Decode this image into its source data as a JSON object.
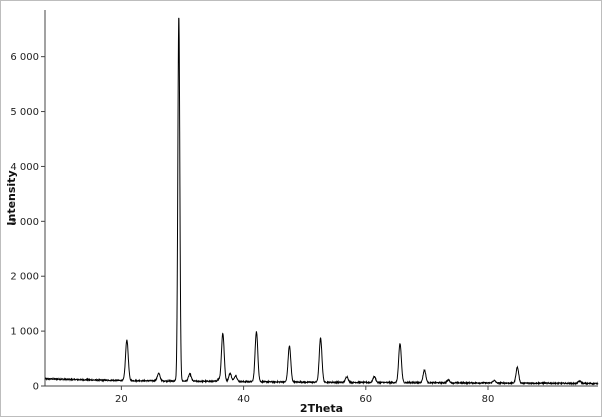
{
  "chart_data": {
    "type": "line",
    "title": "",
    "xlabel": "2Theta",
    "ylabel": "Intensity",
    "xlim": [
      7.5,
      98
    ],
    "ylim": [
      0,
      6850
    ],
    "x_ticks": [
      20,
      40,
      60,
      80
    ],
    "y_ticks": [
      0,
      1000,
      2000,
      3000,
      4000,
      5000,
      6000
    ],
    "y_tick_labels": [
      "0",
      "1 000",
      "2 000",
      "3 000",
      "4 000",
      "5 000",
      "6 000"
    ],
    "x_tick_labels": [
      "20",
      "40",
      "60",
      "80"
    ],
    "grid": false,
    "line_color": "#000000",
    "baseline_points": [
      [
        7.5,
        130
      ],
      [
        10,
        125
      ],
      [
        15,
        110
      ],
      [
        20,
        100
      ],
      [
        25,
        95
      ],
      [
        30,
        90
      ],
      [
        40,
        80
      ],
      [
        50,
        70
      ],
      [
        60,
        65
      ],
      [
        70,
        60
      ],
      [
        80,
        55
      ],
      [
        90,
        50
      ],
      [
        98,
        45
      ]
    ],
    "peaks": [
      {
        "x": 20.9,
        "y": 840
      },
      {
        "x": 26.1,
        "y": 230
      },
      {
        "x": 29.4,
        "y": 6750
      },
      {
        "x": 31.2,
        "y": 220
      },
      {
        "x": 35.9,
        "y": 120
      },
      {
        "x": 36.6,
        "y": 960
      },
      {
        "x": 37.8,
        "y": 230
      },
      {
        "x": 38.7,
        "y": 190
      },
      {
        "x": 42.1,
        "y": 990
      },
      {
        "x": 47.5,
        "y": 730
      },
      {
        "x": 52.6,
        "y": 870
      },
      {
        "x": 56.9,
        "y": 170
      },
      {
        "x": 61.4,
        "y": 170
      },
      {
        "x": 65.6,
        "y": 770
      },
      {
        "x": 69.6,
        "y": 290
      },
      {
        "x": 73.5,
        "y": 110
      },
      {
        "x": 81.0,
        "y": 100
      },
      {
        "x": 84.8,
        "y": 340
      },
      {
        "x": 95.0,
        "y": 90
      }
    ]
  }
}
